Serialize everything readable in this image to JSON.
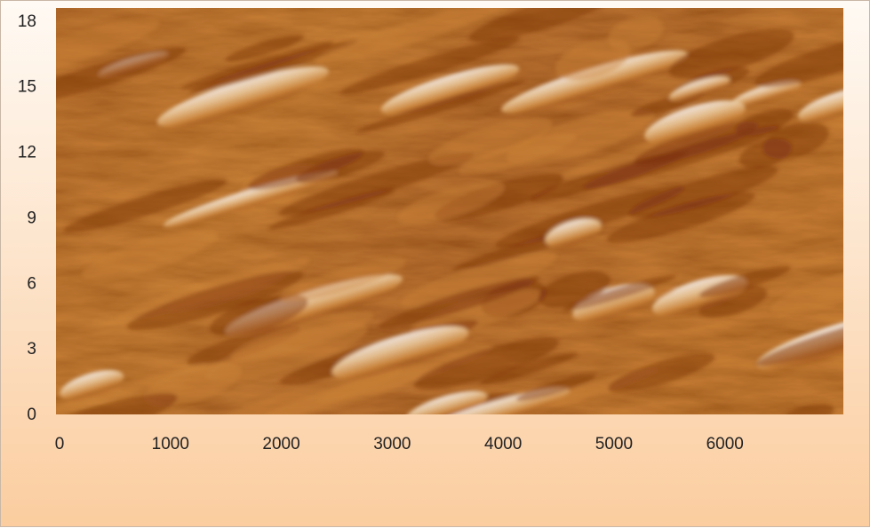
{
  "chart_data": {
    "type": "heatmap",
    "title": "",
    "xlabel": "",
    "ylabel": "",
    "xlim": [
      0,
      7100
    ],
    "ylim": [
      0,
      18.6
    ],
    "x_ticks": [
      "0",
      "1000",
      "2000",
      "3000",
      "4000",
      "5000",
      "6000"
    ],
    "x_tick_values": [
      0,
      1000,
      2000,
      3000,
      4000,
      5000,
      6000
    ],
    "y_ticks": [
      "0",
      "3",
      "6",
      "9",
      "12",
      "15",
      "18"
    ],
    "y_tick_values": [
      0,
      3,
      6,
      9,
      12,
      15,
      18
    ],
    "grid": false,
    "legend": "none",
    "colormap": [
      "#5a1e05",
      "#8b3a0c",
      "#b5641d",
      "#d99640",
      "#f0c790",
      "#fff6ef"
    ]
  }
}
